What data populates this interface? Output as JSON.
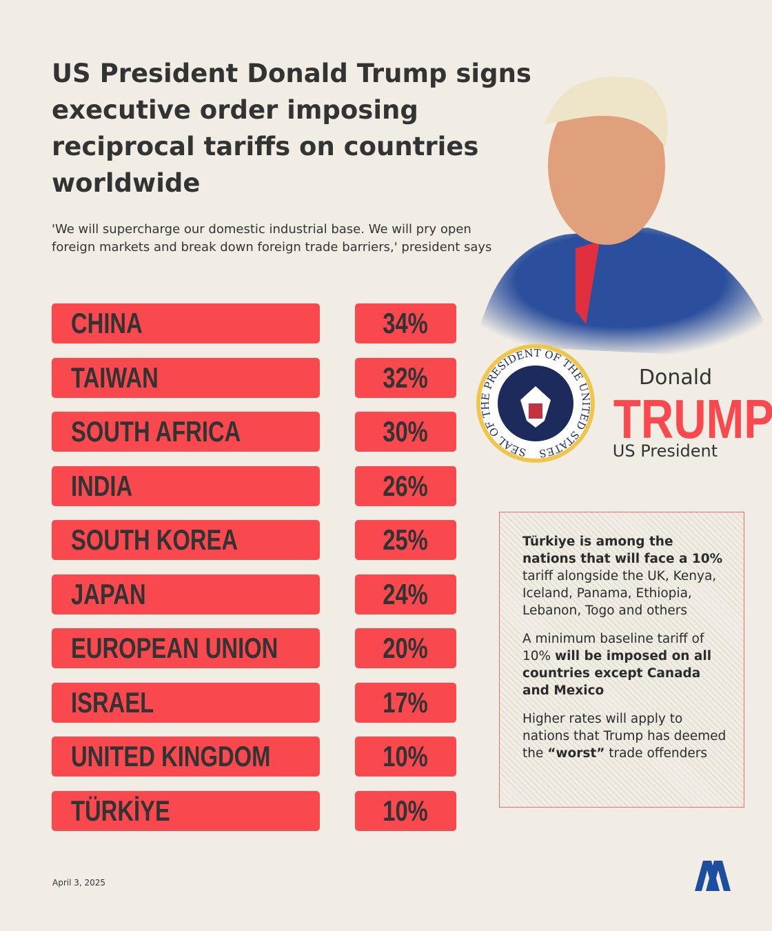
{
  "header": {
    "title": "US President Donald Trump signs executive order imposing reciprocal tariffs on countries worldwide",
    "subtitle": "'We will supercharge our domestic industrial base. We will pry open foreign markets and break down foreign trade barriers,' president says"
  },
  "rows": [
    {
      "country": "CHINA",
      "rate": "34%"
    },
    {
      "country": "TAIWAN",
      "rate": "32%"
    },
    {
      "country": "SOUTH AFRICA",
      "rate": "30%"
    },
    {
      "country": "INDIA",
      "rate": "26%"
    },
    {
      "country": "SOUTH KOREA",
      "rate": "25%"
    },
    {
      "country": "JAPAN",
      "rate": "24%"
    },
    {
      "country": "EUROPEAN UNION",
      "rate": "20%"
    },
    {
      "country": "ISRAEL",
      "rate": "17%"
    },
    {
      "country": "UNITED KINGDOM",
      "rate": "10%"
    },
    {
      "country": "TÜRKİYE",
      "rate": "10%"
    }
  ],
  "seal_text": "SEAL OF THE PRESIDENT OF THE UNITED STATES",
  "profile": {
    "first": "Donald",
    "last": "TRUMP",
    "role": "US President"
  },
  "note": {
    "paragraphs": [
      [
        {
          "text": "Türkiye is among the nations that will face a 10%",
          "bold": true
        },
        {
          "text": " tariff alongside the UK, Kenya, Iceland, Panama, Ethiopia, Lebanon, Togo and others",
          "bold": false
        }
      ],
      [
        {
          "text": "A minimum baseline tariff of 10% ",
          "bold": false
        },
        {
          "text": "will be imposed on all countries except Canada and Mexico",
          "bold": true
        }
      ],
      [
        {
          "text": "Higher rates will apply to nations that Trump has deemed the ",
          "bold": false
        },
        {
          "text": "“worst”",
          "bold": true
        },
        {
          "text": " trade offenders",
          "bold": false
        }
      ]
    ]
  },
  "footer": {
    "date": "April 3, 2025"
  }
}
